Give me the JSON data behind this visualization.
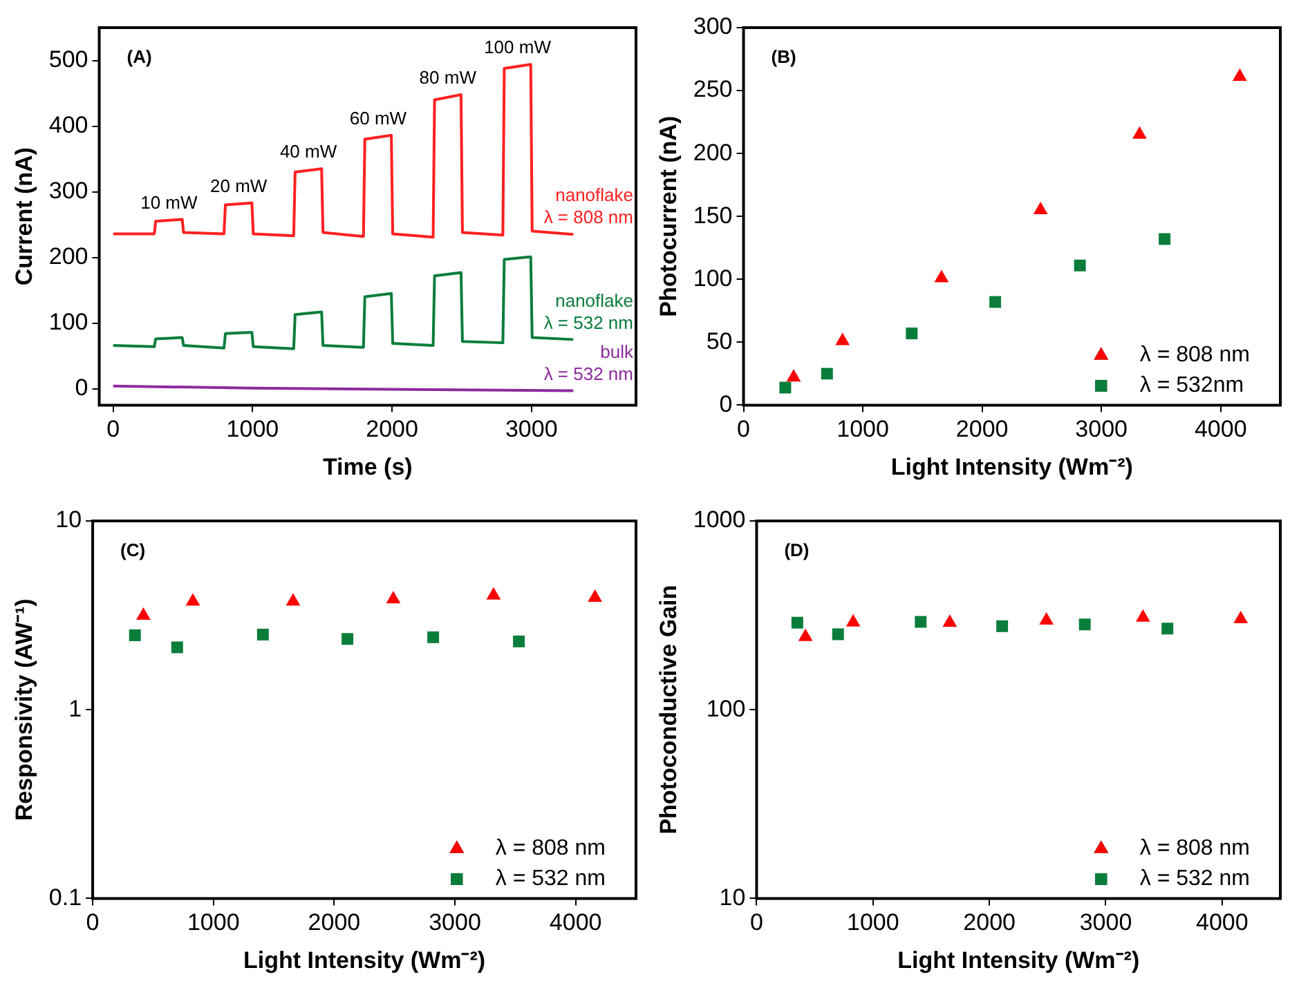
{
  "chart_data": [
    {
      "type": "line",
      "title": "(A)",
      "xlabel": "Time (s)",
      "ylabel": "Current (nA)",
      "xlim": [
        -100,
        3750
      ],
      "ylim": [
        -25,
        550
      ],
      "xticks": [
        0,
        1000,
        2000,
        3000
      ],
      "yticks": [
        0,
        100,
        200,
        300,
        400,
        500
      ],
      "marker": "none",
      "legend": false,
      "series": [
        {
          "name": "nanoflake\nλ = 808 nm",
          "color": "#ff2020",
          "x": [
            0,
            295,
            305,
            495,
            505,
            795,
            805,
            995,
            1005,
            1295,
            1305,
            1495,
            1505,
            1795,
            1805,
            1995,
            2005,
            2295,
            2305,
            2495,
            2505,
            2795,
            2805,
            2995,
            3005,
            3300
          ],
          "values": [
            236,
            236,
            255,
            258,
            238,
            236,
            280,
            283,
            236,
            233,
            330,
            335,
            238,
            232,
            380,
            386,
            236,
            231,
            440,
            448,
            238,
            234,
            488,
            494,
            240,
            235
          ]
        },
        {
          "name": "nanoflake\nλ = 532 nm",
          "color": "#0a7d3b",
          "x": [
            0,
            295,
            305,
            495,
            505,
            795,
            805,
            995,
            1005,
            1295,
            1305,
            1495,
            1505,
            1795,
            1805,
            1995,
            2005,
            2295,
            2305,
            2495,
            2505,
            2795,
            2805,
            2995,
            3005,
            3300
          ],
          "values": [
            66,
            64,
            76,
            78,
            66,
            62,
            84,
            86,
            64,
            61,
            113,
            117,
            66,
            63,
            140,
            145,
            69,
            66,
            172,
            177,
            72,
            70,
            197,
            201,
            78,
            75
          ]
        },
        {
          "name": "bulk\nλ = 532 nm",
          "color": "#8e2b9e",
          "x": [
            0,
            1000,
            2000,
            3300
          ],
          "values": [
            4,
            1,
            -1,
            -3
          ]
        }
      ],
      "annotations": [
        {
          "text": "10 mW",
          "x": 400,
          "y": 258
        },
        {
          "text": "20 mW",
          "x": 900,
          "y": 283
        },
        {
          "text": "40 mW",
          "x": 1400,
          "y": 335
        },
        {
          "text": "60 mW",
          "x": 1900,
          "y": 386
        },
        {
          "text": "80 mW",
          "x": 2400,
          "y": 448
        },
        {
          "text": "100 mW",
          "x": 2900,
          "y": 494
        }
      ]
    },
    {
      "type": "scatter",
      "title": "(B)",
      "xlabel": "Light Intensity (Wm⁻²)",
      "ylabel": "Photocurrent (nA)",
      "xlim": [
        0,
        4500
      ],
      "ylim": [
        0,
        300
      ],
      "xticks": [
        0,
        1000,
        2000,
        3000,
        4000
      ],
      "yticks": [
        0,
        50,
        100,
        150,
        200,
        250,
        300
      ],
      "legend": "bottom right",
      "series": [
        {
          "name": "λ = 808 nm",
          "color": "#ff0000",
          "marker": "triangle",
          "x": [
            420,
            830,
            1660,
            2490,
            3320,
            4160
          ],
          "values": [
            22,
            51,
            101,
            155,
            215,
            261
          ]
        },
        {
          "name": "λ = 532nm",
          "color": "#0a7d3b",
          "marker": "square",
          "x": [
            350,
            700,
            1410,
            2110,
            2820,
            3530
          ],
          "values": [
            14,
            25,
            57,
            82,
            111,
            132
          ]
        }
      ]
    },
    {
      "type": "scatter",
      "title": "(C)",
      "xlabel": "Light Intensity (Wm⁻²)",
      "ylabel": "Responsivity (AW⁻¹)",
      "xlim": [
        0,
        4500
      ],
      "ylim": [
        0.1,
        10
      ],
      "xticks": [
        0,
        1000,
        2000,
        3000,
        4000
      ],
      "yticks": [
        0.1,
        1,
        10
      ],
      "log": "y",
      "legend": "bottom right",
      "series": [
        {
          "name": "λ = 808 nm",
          "color": "#ff0000",
          "marker": "triangle",
          "x": [
            420,
            830,
            1660,
            2490,
            3320,
            4160
          ],
          "values": [
            3.15,
            3.75,
            3.75,
            3.85,
            4.03,
            3.92
          ]
        },
        {
          "name": "λ = 532 nm",
          "color": "#0a7d3b",
          "marker": "square",
          "x": [
            350,
            700,
            1410,
            2110,
            2820,
            3530
          ],
          "values": [
            2.48,
            2.14,
            2.5,
            2.37,
            2.42,
            2.3
          ]
        }
      ]
    },
    {
      "type": "scatter",
      "title": "(D)",
      "xlabel": "Light Intensity (Wm⁻²)",
      "ylabel": "Photoconductive Gain",
      "xlim": [
        0,
        4500
      ],
      "ylim": [
        10,
        1000
      ],
      "xticks": [
        0,
        1000,
        2000,
        3000,
        4000
      ],
      "yticks": [
        10,
        100,
        1000
      ],
      "log": "y",
      "legend": "bottom right",
      "series": [
        {
          "name": "λ = 808 nm",
          "color": "#ff0000",
          "marker": "triangle",
          "x": [
            420,
            830,
            1660,
            2490,
            3320,
            4160
          ],
          "values": [
            243,
            290,
            289,
            297,
            308,
            302
          ]
        },
        {
          "name": "λ = 532 nm",
          "color": "#0a7d3b",
          "marker": "square",
          "x": [
            350,
            700,
            1410,
            2110,
            2820,
            3530
          ],
          "values": [
            289,
            251,
            292,
            277,
            283,
            269
          ]
        }
      ]
    }
  ]
}
